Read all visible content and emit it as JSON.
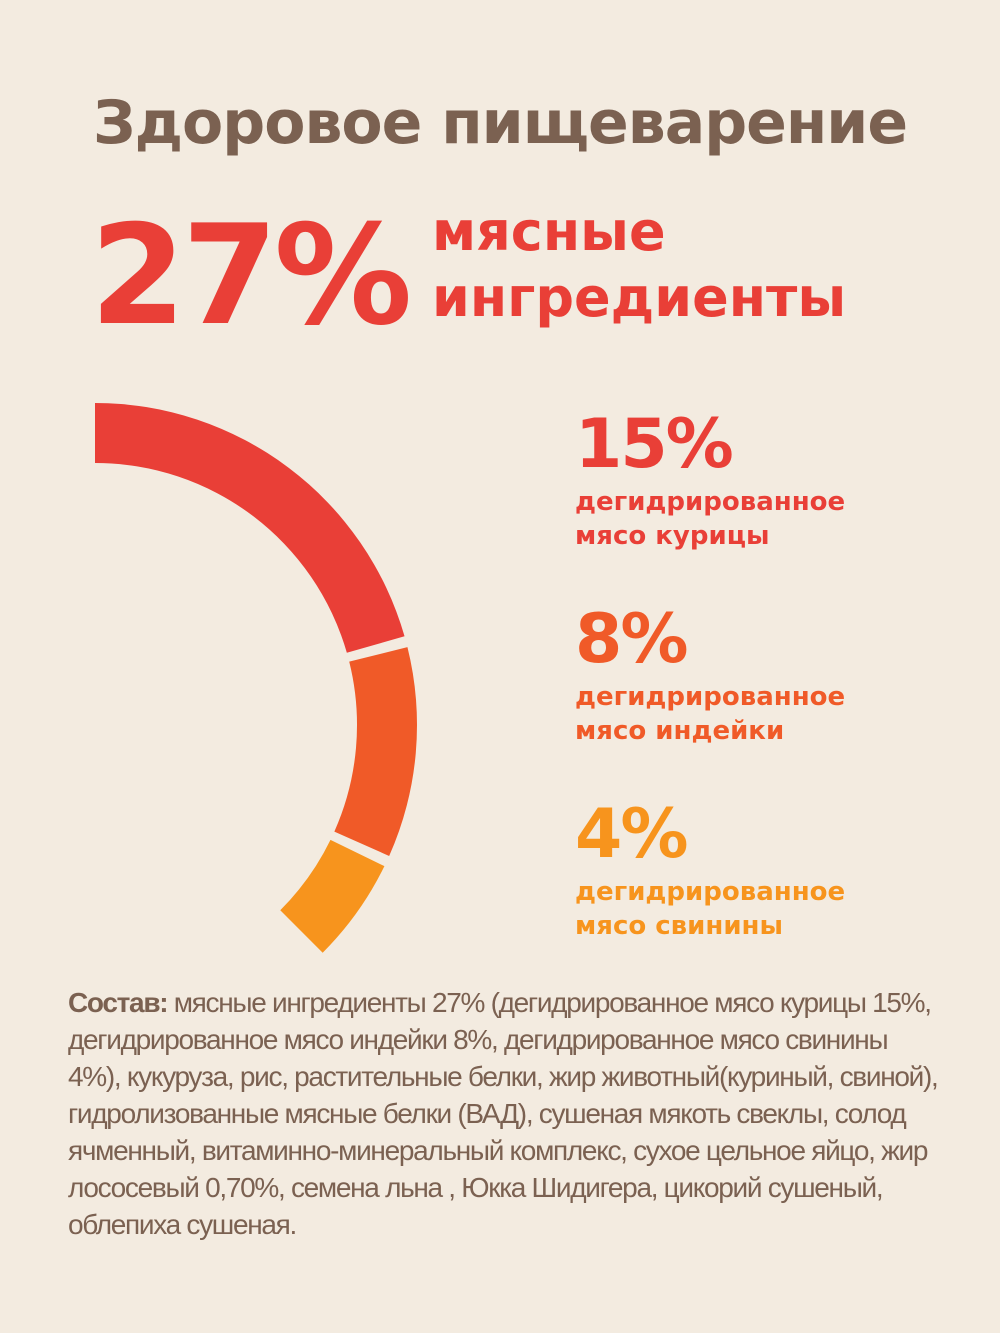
{
  "header": {
    "title": "Здоровое пищеварение"
  },
  "total": {
    "value": 27,
    "label": "27%",
    "text_lines": [
      "мясные",
      "ингредиенты"
    ]
  },
  "chart_data": {
    "type": "arc",
    "categories": [
      "дегидрированное мясо курицы",
      "дегидрированное мясо индейки",
      "дегидрированное мясо свинины"
    ],
    "values": [
      15,
      8,
      4
    ],
    "value_labels": [
      "15%",
      "8%",
      "4%"
    ],
    "colors": [
      "#e93f37",
      "#f05a28",
      "#f7941d"
    ]
  },
  "composition": {
    "label": "Состав:",
    "text": "мясные ингредиенты 27% (дегидрированное мясо курицы 15%, дегидрированное мясо индейки 8%, дегидрированное мясо свинины 4%), кукуруза, рис, растительные белки, жир животный(куриный, свиной), гидролизованные мясные белки (ВАД), сушеная мякоть свеклы, солод ячменный, витаминно-минеральный комплекс, сухое цельное яйцо, жир лососевый 0,70%, семена льна , Юкка Шидигера, цикорий сушеный, облепиха сушеная."
  }
}
